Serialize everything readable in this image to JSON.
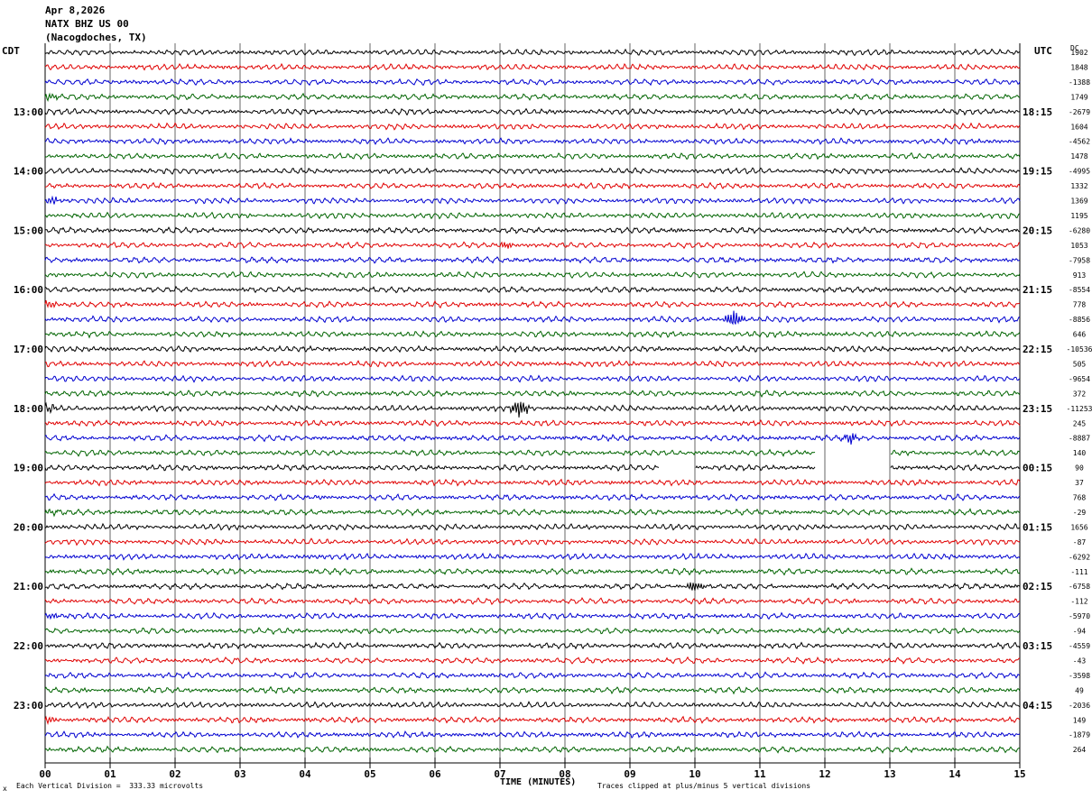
{
  "header": {
    "date": "Apr 8,2026",
    "station": "NATX BHZ US 00",
    "location": "(Nacogdoches, TX)"
  },
  "left_axis_label": "CDT",
  "right_axis_label": "UTC",
  "dc_label": "DC",
  "footer": {
    "scale_note": "Each Vertical Division =  333.33 microvolts",
    "clip_note": "Traces clipped at plus/minus 5 vertical divisions",
    "mark": "x"
  },
  "colors": {
    "trace_cycle": [
      "#000000",
      "#e00000",
      "#0000d0",
      "#006400"
    ],
    "grid": "#000000",
    "background": "#ffffff"
  },
  "chart_data": {
    "type": "line",
    "xlabel": "TIME (MINUTES)",
    "x_ticks": [
      "00",
      "01",
      "02",
      "03",
      "04",
      "05",
      "06",
      "07",
      "08",
      "09",
      "10",
      "11",
      "12",
      "13",
      "14",
      "15"
    ],
    "xlim": [
      0,
      15
    ],
    "trace_count": 48,
    "traces_per_hour": 4,
    "cdt_hour_labels": [
      "13:00",
      "14:00",
      "15:00",
      "16:00",
      "17:00",
      "18:00",
      "19:00",
      "20:00",
      "21:00",
      "22:00",
      "23:00"
    ],
    "utc_hour_labels": [
      "18:15",
      "19:15",
      "20:15",
      "21:15",
      "22:15",
      "23:15",
      "00:15",
      "01:15",
      "02:15",
      "03:15",
      "04:15"
    ],
    "hour_label_first_trace": 4,
    "dc_offsets": [
      "1902",
      "1848",
      "-1388",
      "1749",
      "-2679",
      "1604",
      "-4562",
      "1478",
      "-4995",
      "1332",
      "1369",
      "1195",
      "-6280",
      "1053",
      "-7958",
      "913",
      "-8554",
      "778",
      "-8856",
      "646",
      "-10536",
      "505",
      "-9654",
      "372",
      "-11253",
      "245",
      "-8887",
      "140",
      "90",
      "37",
      "768",
      "-29",
      "1656",
      "-87",
      "-6292",
      "-111",
      "-6758",
      "-112",
      "-5970",
      "-94",
      "-4559",
      "-43",
      "-3598",
      "49",
      "-2036",
      "149",
      "-1879",
      "264"
    ],
    "gaps": [
      {
        "trace": 27,
        "from_minute": 11.85,
        "to_minute": 13.0
      },
      {
        "trace": 28,
        "from_minute": 9.45,
        "to_minute": 10.0
      },
      {
        "trace": 28,
        "from_minute": 11.85,
        "to_minute": 13.0
      }
    ],
    "events": [
      {
        "trace": 18,
        "minute": 10.6,
        "amplitude": "large"
      },
      {
        "trace": 24,
        "minute": 7.3,
        "amplitude": "large"
      },
      {
        "trace": 26,
        "minute": 12.4,
        "amplitude": "medium"
      },
      {
        "trace": 36,
        "minute": 10.0,
        "amplitude": "medium"
      },
      {
        "trace": 13,
        "minute": 7.1,
        "amplitude": "small"
      }
    ]
  }
}
